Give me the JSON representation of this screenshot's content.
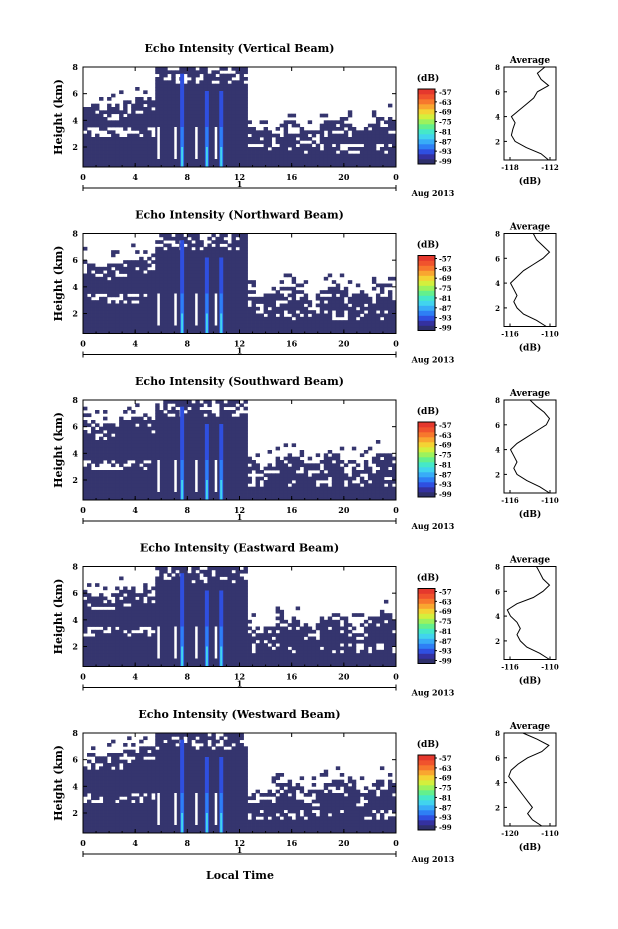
{
  "figure": {
    "xlabel": "Local Time",
    "date_label": "Aug 2013",
    "day_label": "1"
  },
  "colorbar": {
    "unit": "(dB)",
    "ticks": [
      "-57",
      "-63",
      "-69",
      "-75",
      "-81",
      "-87",
      "-93",
      "-99"
    ],
    "colors": [
      "#2e2f6b",
      "#3431a0",
      "#2f4fe0",
      "#2e7ff5",
      "#38acf7",
      "#41d4ee",
      "#45e8c9",
      "#63f08d",
      "#9cf25d",
      "#d4ef3d",
      "#f4d334",
      "#f9a630",
      "#f7782d",
      "#f0532d",
      "#e5382d"
    ]
  },
  "chart_data": [
    {
      "type": "heatmap",
      "title": "Echo Intensity (Vertical Beam)",
      "ylabel": "Height (km)",
      "xlim": [
        0,
        24
      ],
      "ylim": [
        0.5,
        8
      ],
      "xticks": [
        "0",
        "4",
        "8",
        "12",
        "16",
        "20",
        "0"
      ],
      "yticks": [
        "2",
        "4",
        "6",
        "8"
      ],
      "clim": [
        -99,
        -54
      ],
      "bright_columns_hours": [
        7.6,
        9.5,
        10.6
      ],
      "cloud_top_km": 5.4,
      "cloud_top_km_late": 3.5,
      "profile": {
        "title": "Average",
        "xlabel": "(dB)",
        "xticks": [
          "-118",
          "-112"
        ],
        "xlim": [
          -118,
          -111
        ],
        "yticks": [
          "2",
          "4",
          "6",
          "8"
        ],
        "ylim": [
          0.5,
          8
        ],
        "height_km": [
          0.5,
          1.0,
          1.5,
          2.0,
          2.5,
          3.0,
          3.5,
          4.0,
          4.5,
          5.0,
          5.5,
          6.0,
          6.5,
          7.0,
          7.5,
          8.0
        ],
        "value_db": [
          -112,
          -113,
          -115,
          -116.5,
          -117,
          -116.8,
          -116.5,
          -117,
          -116,
          -115,
          -114,
          -113.5,
          -112,
          -113,
          -113.5,
          -112.5
        ]
      }
    },
    {
      "type": "heatmap",
      "title": "Echo Intensity (Northward Beam)",
      "ylabel": "Height (km)",
      "xlim": [
        0,
        24
      ],
      "ylim": [
        0.5,
        8
      ],
      "xticks": [
        "0",
        "4",
        "8",
        "12",
        "16",
        "20",
        "0"
      ],
      "yticks": [
        "2",
        "4",
        "6",
        "8"
      ],
      "clim": [
        -99,
        -54
      ],
      "bright_columns_hours": [
        7.6,
        9.5,
        10.6
      ],
      "cloud_top_km": 6.0,
      "cloud_top_km_late": 3.6,
      "profile": {
        "title": "Average",
        "xlabel": "(dB)",
        "xticks": [
          "-116",
          "-110"
        ],
        "xlim": [
          -117,
          -109
        ],
        "yticks": [
          "2",
          "4",
          "6",
          "8"
        ],
        "ylim": [
          0.5,
          8
        ],
        "height_km": [
          0.5,
          1.0,
          1.5,
          2.0,
          2.5,
          3.0,
          3.5,
          4.0,
          4.5,
          5.0,
          5.5,
          6.0,
          6.5,
          7.0,
          7.5,
          8.0
        ],
        "value_db": [
          -110.5,
          -112,
          -114,
          -115,
          -115.5,
          -115,
          -115.5,
          -116,
          -115,
          -114,
          -112.5,
          -111,
          -110,
          -111,
          -112,
          -112.5
        ]
      }
    },
    {
      "type": "heatmap",
      "title": "Echo Intensity (Southward Beam)",
      "ylabel": "Height (km)",
      "xlim": [
        0,
        24
      ],
      "ylim": [
        0.5,
        8
      ],
      "xticks": [
        "0",
        "4",
        "8",
        "12",
        "16",
        "20",
        "0"
      ],
      "yticks": [
        "2",
        "4",
        "6",
        "8"
      ],
      "clim": [
        -99,
        -54
      ],
      "bright_columns_hours": [
        7.6,
        9.5,
        10.6
      ],
      "cloud_top_km": 6.5,
      "cloud_top_km_late": 3.4,
      "profile": {
        "title": "Average",
        "xlabel": "(dB)",
        "xticks": [
          "-116",
          "-110"
        ],
        "xlim": [
          -117,
          -109
        ],
        "yticks": [
          "2",
          "4",
          "6",
          "8"
        ],
        "ylim": [
          0.5,
          8
        ],
        "height_km": [
          0.5,
          1.0,
          1.5,
          2.0,
          2.5,
          3.0,
          3.5,
          4.0,
          4.5,
          5.0,
          5.5,
          6.0,
          6.5,
          7.0,
          7.5,
          8.0
        ],
        "value_db": [
          -110,
          -111.5,
          -113.5,
          -115,
          -115.5,
          -115,
          -115.5,
          -116,
          -115,
          -113.5,
          -112,
          -110.5,
          -110,
          -110.8,
          -112,
          -113
        ]
      }
    },
    {
      "type": "heatmap",
      "title": "Echo Intensity (Eastward Beam)",
      "ylabel": "Height (km)",
      "xlim": [
        0,
        24
      ],
      "ylim": [
        0.5,
        8
      ],
      "xticks": [
        "0",
        "4",
        "8",
        "12",
        "16",
        "20",
        "0"
      ],
      "yticks": [
        "2",
        "4",
        "6",
        "8"
      ],
      "clim": [
        -99,
        -54
      ],
      "bright_columns_hours": [
        7.6,
        9.5,
        10.6
      ],
      "cloud_top_km": 6.2,
      "cloud_top_km_late": 3.8,
      "profile": {
        "title": "Average",
        "xlabel": "(dB)",
        "xticks": [
          "-116",
          "-110"
        ],
        "xlim": [
          -117,
          -109
        ],
        "yticks": [
          "2",
          "4",
          "6",
          "8"
        ],
        "ylim": [
          0.5,
          8
        ],
        "height_km": [
          0.5,
          1.0,
          1.5,
          2.0,
          2.5,
          3.0,
          3.5,
          4.0,
          4.5,
          5.0,
          5.5,
          6.0,
          6.5,
          7.0,
          7.5,
          8.0
        ],
        "value_db": [
          -110,
          -111.5,
          -113.5,
          -114.5,
          -115,
          -114.5,
          -115,
          -116,
          -116.5,
          -115,
          -112.5,
          -111,
          -110,
          -111,
          -111.5,
          -112
        ]
      }
    },
    {
      "type": "heatmap",
      "title": "Echo Intensity (Westward Beam)",
      "ylabel": "Height (km)",
      "xlim": [
        0,
        24
      ],
      "ylim": [
        0.5,
        8
      ],
      "xticks": [
        "0",
        "4",
        "8",
        "12",
        "16",
        "20",
        "0"
      ],
      "yticks": [
        "2",
        "4",
        "6",
        "8"
      ],
      "clim": [
        -99,
        -54
      ],
      "bright_columns_hours": [
        7.6,
        9.5,
        10.6
      ],
      "cloud_top_km": 6.6,
      "cloud_top_km_late": 3.9,
      "profile": {
        "title": "Average",
        "xlabel": "(dB)",
        "xticks": [
          "-120",
          "-110"
        ],
        "xlim": [
          -120,
          -109
        ],
        "yticks": [
          "2",
          "4",
          "6",
          "8"
        ],
        "ylim": [
          0.5,
          8
        ],
        "height_km": [
          0.5,
          1.0,
          1.5,
          2.0,
          2.5,
          3.0,
          3.5,
          4.0,
          4.5,
          5.0,
          5.5,
          6.0,
          6.5,
          7.0,
          7.5,
          8.0
        ],
        "value_db": [
          -112,
          -114,
          -115,
          -114,
          -115,
          -116,
          -117,
          -118,
          -119,
          -118.5,
          -117,
          -115,
          -112,
          -110.5,
          -113,
          -116
        ]
      }
    }
  ]
}
